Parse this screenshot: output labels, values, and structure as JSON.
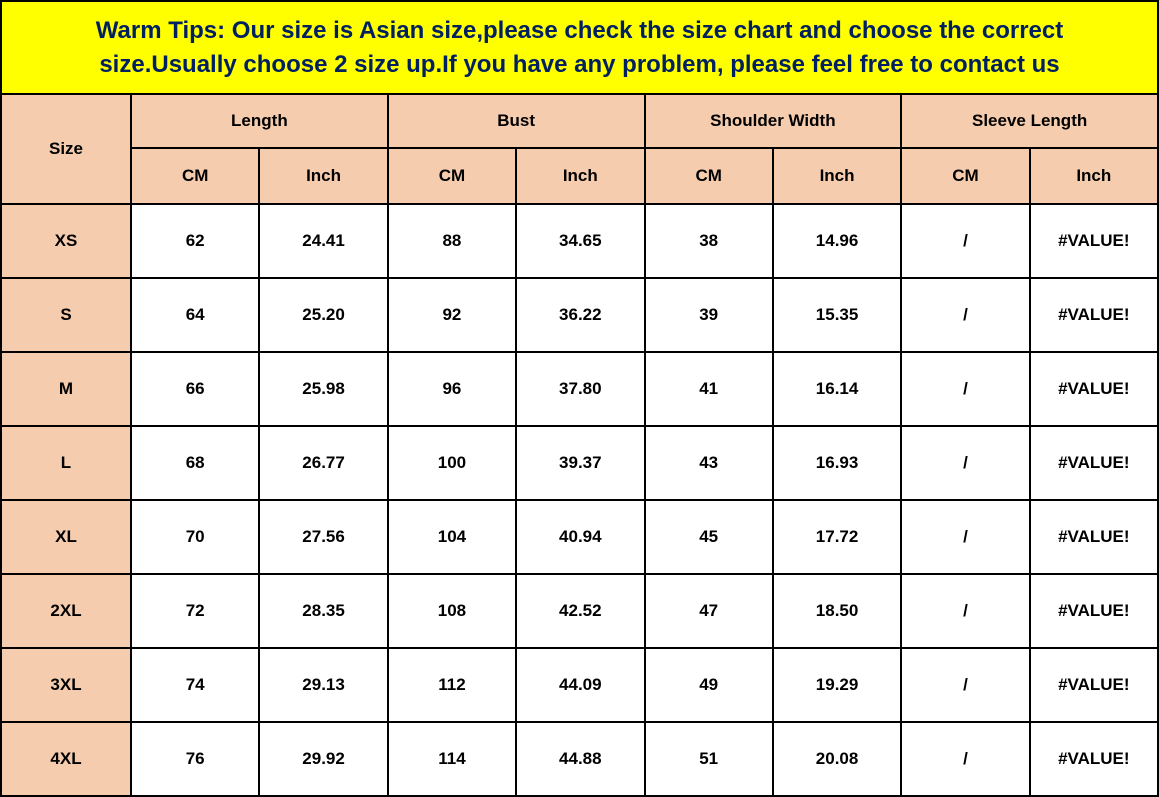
{
  "tips": "Warm Tips:  Our size is Asian size,please check the size chart and choose the correct size.Usually choose 2 size up.If you have any problem, please feel free to contact us",
  "headers": {
    "size": "Size",
    "groups": [
      "Length",
      "Bust",
      "Shoulder Width",
      "Sleeve Length"
    ],
    "units": [
      "CM",
      "Inch"
    ]
  },
  "rows": [
    {
      "size": "XS",
      "length_cm": "62",
      "length_in": "24.41",
      "bust_cm": "88",
      "bust_in": "34.65",
      "shoulder_cm": "38",
      "shoulder_in": "14.96",
      "sleeve_cm": "/",
      "sleeve_in": "#VALUE!"
    },
    {
      "size": "S",
      "length_cm": "64",
      "length_in": "25.20",
      "bust_cm": "92",
      "bust_in": "36.22",
      "shoulder_cm": "39",
      "shoulder_in": "15.35",
      "sleeve_cm": "/",
      "sleeve_in": "#VALUE!"
    },
    {
      "size": "M",
      "length_cm": "66",
      "length_in": "25.98",
      "bust_cm": "96",
      "bust_in": "37.80",
      "shoulder_cm": "41",
      "shoulder_in": "16.14",
      "sleeve_cm": "/",
      "sleeve_in": "#VALUE!"
    },
    {
      "size": "L",
      "length_cm": "68",
      "length_in": "26.77",
      "bust_cm": "100",
      "bust_in": "39.37",
      "shoulder_cm": "43",
      "shoulder_in": "16.93",
      "sleeve_cm": "/",
      "sleeve_in": "#VALUE!"
    },
    {
      "size": "XL",
      "length_cm": "70",
      "length_in": "27.56",
      "bust_cm": "104",
      "bust_in": "40.94",
      "shoulder_cm": "45",
      "shoulder_in": "17.72",
      "sleeve_cm": "/",
      "sleeve_in": "#VALUE!"
    },
    {
      "size": "2XL",
      "length_cm": "72",
      "length_in": "28.35",
      "bust_cm": "108",
      "bust_in": "42.52",
      "shoulder_cm": "47",
      "shoulder_in": "18.50",
      "sleeve_cm": "/",
      "sleeve_in": "#VALUE!"
    },
    {
      "size": "3XL",
      "length_cm": "74",
      "length_in": "29.13",
      "bust_cm": "112",
      "bust_in": "44.09",
      "shoulder_cm": "49",
      "shoulder_in": "19.29",
      "sleeve_cm": "/",
      "sleeve_in": "#VALUE!"
    },
    {
      "size": "4XL",
      "length_cm": "76",
      "length_in": "29.92",
      "bust_cm": "114",
      "bust_in": "44.88",
      "shoulder_cm": "51",
      "shoulder_in": "20.08",
      "sleeve_cm": "/",
      "sleeve_in": "#VALUE!"
    }
  ],
  "colors": {
    "banner_bg": "#ffff00",
    "banner_text": "#002060",
    "header_bg": "#f6ccae",
    "data_bg": "#ffffff",
    "border": "#000000"
  }
}
